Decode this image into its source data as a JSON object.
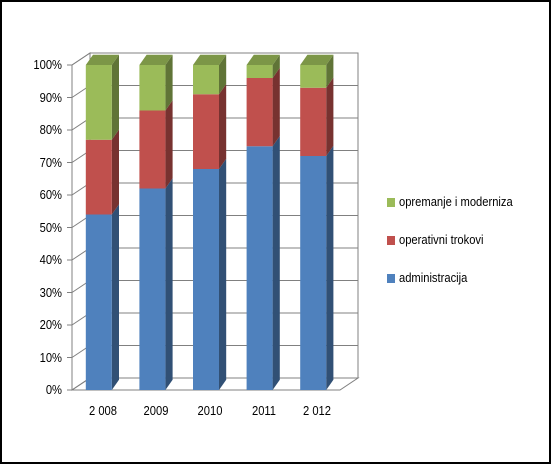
{
  "chart_data": {
    "type": "bar",
    "stacked": true,
    "percent": true,
    "three_d": true,
    "categories": [
      "2 008",
      "2009",
      "2010",
      "2011",
      "2 012"
    ],
    "series": [
      {
        "name": "administracija",
        "color": "#4F81BD",
        "values": [
          54,
          62,
          68,
          75,
          72
        ]
      },
      {
        "name": "operativni trokovi",
        "color": "#C0504D",
        "values": [
          23,
          24,
          23,
          21,
          21
        ]
      },
      {
        "name": "opremanje i moderniza",
        "color": "#9BBB59",
        "values": [
          23,
          14,
          9,
          4,
          7
        ]
      }
    ],
    "y_tick_labels": [
      "0%",
      "10%",
      "20%",
      "30%",
      "40%",
      "50%",
      "60%",
      "70%",
      "80%",
      "90%",
      "100%"
    ],
    "ylim": [
      0,
      100
    ],
    "grid": true,
    "legend_position": "right",
    "legend_order": [
      "opremanje i moderniza",
      "operativni trokovi",
      "administracija"
    ]
  }
}
